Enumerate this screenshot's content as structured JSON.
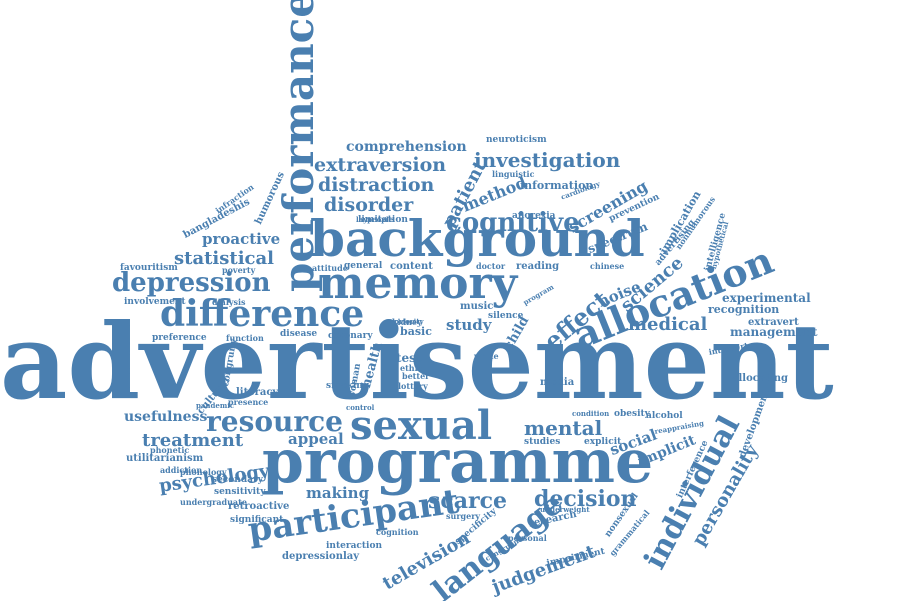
{
  "colors": {
    "word": "#4a7fb0",
    "background": "#ffffff"
  },
  "words": [
    "advertisement",
    "programme",
    "background",
    "memory",
    "performance",
    "difference",
    "sexual",
    "participant",
    "allocation",
    "resource",
    "language",
    "depression",
    "individual",
    "cognitive",
    "effect",
    "investigation",
    "extraversion",
    "distraction",
    "disorder",
    "comprehension",
    "patient",
    "method",
    "screening",
    "science",
    "medical",
    "personality",
    "judgement",
    "television",
    "scarce",
    "decision",
    "mental",
    "treatment",
    "psychology",
    "statistical",
    "proactive",
    "usefulness",
    "appeal",
    "making",
    "study",
    "social",
    "implicit",
    "health",
    "experimental",
    "recognition",
    "management",
    "extravert",
    "allocating",
    "development",
    "information",
    "spectrum",
    "implication",
    "neuroticism",
    "content",
    "reading",
    "general",
    "attitude",
    "limitation",
    "bangladeshis",
    "favouritism",
    "involvement",
    "preference",
    "utilitarianism",
    "secondary",
    "sensitivity",
    "retroactive",
    "significant",
    "interaction",
    "depressionlay",
    "research",
    "impairment",
    "personal",
    "surgery",
    "cognition",
    "studies",
    "explicit",
    "obesity",
    "alcohol",
    "media",
    "music",
    "silence",
    "kidney",
    "basic",
    "test",
    "child",
    "noise",
    "anorexia",
    "chinese",
    "doctor",
    "literacy",
    "cultural",
    "smoking",
    "woman",
    "control",
    "coronary",
    "disease",
    "function",
    "dialysis",
    "poverty",
    "humorous",
    "infraction",
    "prevention",
    "intelligence",
    "introvert",
    "advertising",
    "nonhumorous",
    "grammatical",
    "nonsexual",
    "underweight",
    "undergraduate",
    "phonology",
    "phonetic",
    "addiction",
    "pandemic",
    "interference",
    "lottery",
    "white",
    "ethic",
    "better",
    "priority",
    "program",
    "cardiology",
    "linguistic",
    "laypeople",
    "congruence",
    "specificity",
    "congruity",
    "presence",
    "hypothetical",
    "reappraising",
    "condition"
  ]
}
